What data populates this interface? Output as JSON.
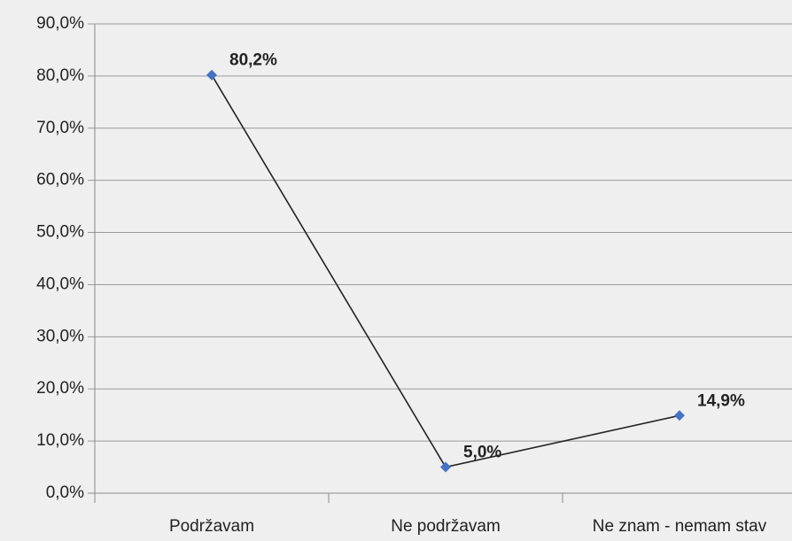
{
  "chart_data": {
    "type": "line",
    "categories": [
      "Podržavam",
      "Ne podržavam",
      "Ne znam - nemam stav"
    ],
    "series": [
      {
        "color": "#4472c4",
        "values": [
          80.2,
          5.0,
          14.9
        ],
        "value_labels": [
          "80,2%",
          "5,0%",
          "14,9%"
        ]
      }
    ],
    "ylim": [
      0,
      90
    ],
    "yticks": [
      {
        "value": 0,
        "label": "0,0%"
      },
      {
        "value": 10,
        "label": "10,0%"
      },
      {
        "value": 20,
        "label": "20,0%"
      },
      {
        "value": 30,
        "label": "30,0%"
      },
      {
        "value": 40,
        "label": "40,0%"
      },
      {
        "value": 50,
        "label": "50,0%"
      },
      {
        "value": 60,
        "label": "60,0%"
      },
      {
        "value": 70,
        "label": "70,0%"
      },
      {
        "value": 80,
        "label": "80,0%"
      },
      {
        "value": 90,
        "label": "90,0%"
      }
    ],
    "grid": true
  }
}
